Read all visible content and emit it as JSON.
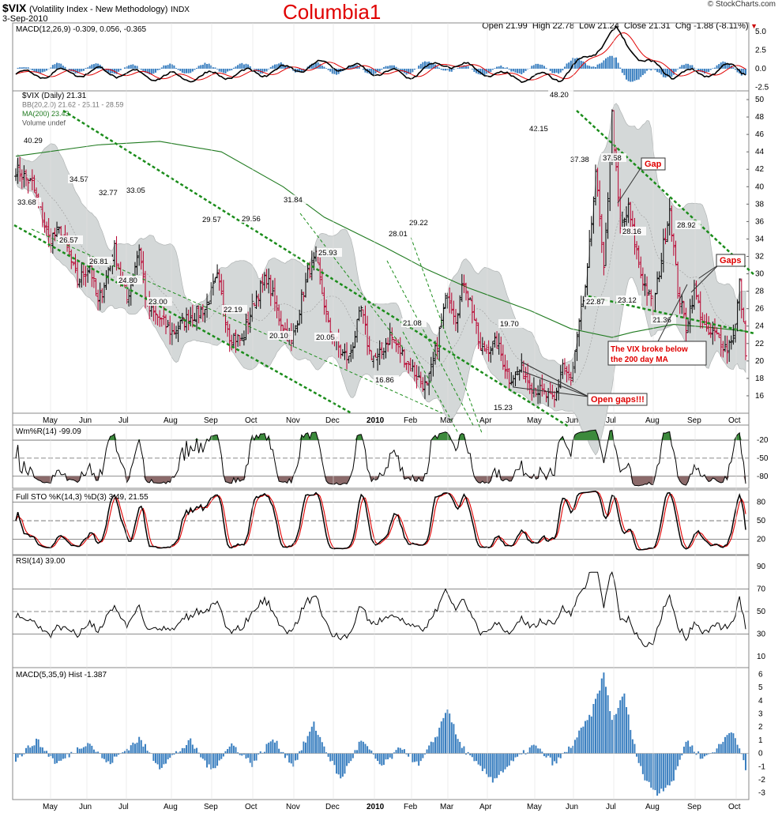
{
  "header": {
    "symbol": "$VIX",
    "name": "(Volatility Index - New Methodology)",
    "exchange": "INDX",
    "date": "3-Sep-2010",
    "watermark": "© StockCharts.com",
    "chart_title": "Columbia1",
    "ohlc": "Open 21.99  High 22.78  Low 21.24  Close 21.31  Chg -1.88 (-8.11%)"
  },
  "colors": {
    "price_bar_up": "#000000",
    "price_bar_down": "#b8002e",
    "bb_fill": "#d4d8d8",
    "ma200": "#1f7a1f",
    "trendline": "#1a8c1a",
    "macd_line": "#000000",
    "signal_line": "#e00000",
    "hist": "#3a7fc0",
    "wr_fill": "#8b6a6a",
    "annotation": "#e00000"
  },
  "x_axis": {
    "months": [
      "May",
      "Jun",
      "Jul",
      "Aug",
      "Sep",
      "Oct",
      "Nov",
      "Dec",
      "2010",
      "Feb",
      "Mar",
      "Apr",
      "May",
      "Jun",
      "Jul",
      "Aug",
      "Sep",
      "Oct"
    ]
  },
  "panels": {
    "macd_top": {
      "label": "MACD(12,26,9) -0.309, 0.056, -0.365",
      "ticks": [
        "5.0",
        "2.5",
        "0.0",
        "-2.5"
      ]
    },
    "price": {
      "legend": [
        "$VIX (Daily) 21.31",
        "BB(20,2.0) 21.62 - 25.11 - 28.59",
        "MA(200) 23.43",
        "Volume undef"
      ],
      "ticks": [
        "50",
        "48",
        "46",
        "44",
        "42",
        "40",
        "38",
        "36",
        "34",
        "32",
        "30",
        "28",
        "26",
        "24",
        "22",
        "20",
        "18",
        "16"
      ]
    },
    "wr": {
      "label": "Wm%R(14) -99.09",
      "ticks": [
        "-20",
        "-50",
        "-80"
      ]
    },
    "sto": {
      "label": "Full STO %K(14,3) %D(3) 3.49, 21.55",
      "ticks": [
        "80",
        "50",
        "20"
      ]
    },
    "rsi": {
      "label": "RSI(14) 39.00",
      "ticks": [
        "90",
        "70",
        "50",
        "30",
        "10"
      ]
    },
    "macd_hist": {
      "label": "MACD(5,35,9) Hist -1.387",
      "ticks": [
        "6",
        "5",
        "4",
        "3",
        "2",
        "1",
        "0",
        "-1",
        "-2",
        "-3"
      ]
    }
  },
  "annotations": {
    "gap": "Gap",
    "gaps": "Gaps",
    "open_gaps": "Open gaps!!!",
    "broke_below_line1": "The VIX broke below",
    "broke_below_line2": "the 200 day MA"
  },
  "chart_data": {
    "type": "line",
    "title": "$VIX (Volatility Index - New Methodology) INDX",
    "price_labels": [
      {
        "x": "Apr-09",
        "y": 40.29
      },
      {
        "x": "Apr-09b",
        "y": 33.68
      },
      {
        "x": "May-09",
        "y": 34.57
      },
      {
        "x": "May-09b",
        "y": 26.57
      },
      {
        "x": "Jun-09",
        "y": 32.77
      },
      {
        "x": "Jun-09b",
        "y": 26.81
      },
      {
        "x": "Jul-09",
        "y": 33.05
      },
      {
        "x": "Jul-09b",
        "y": 24.8
      },
      {
        "x": "Jul-09c",
        "y": 23.0
      },
      {
        "x": "Aug-09",
        "y": 29.57
      },
      {
        "x": "Sep-09",
        "y": 22.19
      },
      {
        "x": "Sep-09b",
        "y": 29.56
      },
      {
        "x": "Oct-09",
        "y": 31.84
      },
      {
        "x": "Oct-09b",
        "y": 20.1
      },
      {
        "x": "Nov-09",
        "y": 25.93
      },
      {
        "x": "Nov-09b",
        "y": 20.05
      },
      {
        "x": "Jan-10",
        "y": 16.86
      },
      {
        "x": "Jan-10b",
        "y": 28.01
      },
      {
        "x": "Feb-10",
        "y": 29.22
      },
      {
        "x": "Feb-10b",
        "y": 21.08
      },
      {
        "x": "Apr-10",
        "y": 19.7
      },
      {
        "x": "Apr-10b",
        "y": 15.23
      },
      {
        "x": "May-10",
        "y": 42.15
      },
      {
        "x": "May-10b",
        "y": 48.2
      },
      {
        "x": "Jun-10",
        "y": 37.38
      },
      {
        "x": "Jun-10b",
        "y": 37.58
      },
      {
        "x": "Jun-10c",
        "y": 22.87
      },
      {
        "x": "Jul-10",
        "y": 28.16
      },
      {
        "x": "Jul-10b",
        "y": 23.12
      },
      {
        "x": "Aug-10",
        "y": 21.36
      },
      {
        "x": "Aug-10b",
        "y": 28.92
      }
    ],
    "ylim": [
      14,
      51
    ]
  }
}
